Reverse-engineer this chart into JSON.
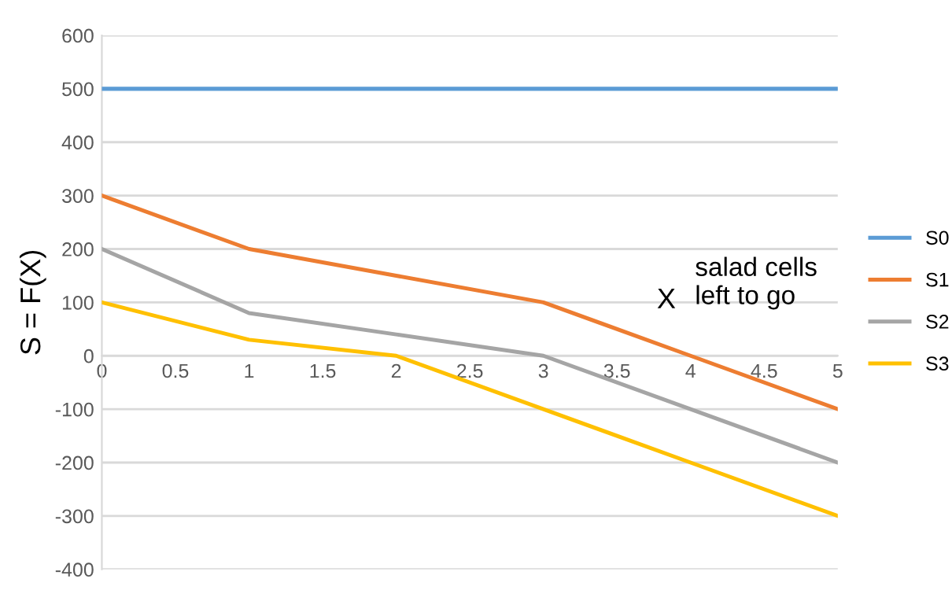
{
  "chart_data": {
    "type": "line",
    "ylabel": "S = F(X)",
    "x": [
      0,
      1,
      2,
      3,
      4,
      5
    ],
    "series": [
      {
        "name": "S0",
        "color": "#5b9bd5",
        "values": [
          500,
          500,
          500,
          500,
          500,
          500
        ]
      },
      {
        "name": "S1",
        "color": "#ed7d31",
        "values": [
          300,
          200,
          150,
          100,
          0,
          -100
        ]
      },
      {
        "name": "S2",
        "color": "#a5a5a5",
        "values": [
          200,
          80,
          40,
          0,
          -100,
          -200
        ]
      },
      {
        "name": "S3",
        "color": "#ffc000",
        "values": [
          100,
          30,
          0,
          -100,
          -200,
          -300
        ]
      }
    ],
    "annotations": [
      "X",
      "salad cells\nleft to go"
    ],
    "xlim": [
      0,
      5
    ],
    "xticks": [
      0,
      0.5,
      1,
      1.5,
      2,
      2.5,
      3,
      3.5,
      4,
      4.5,
      5
    ],
    "ylim": [
      -400,
      600
    ],
    "yticks": [
      -400,
      -300,
      -200,
      -100,
      0,
      100,
      200,
      300,
      400,
      500,
      600
    ],
    "grid": "y",
    "legend": "right",
    "marker": "none",
    "line_style": "solid"
  }
}
